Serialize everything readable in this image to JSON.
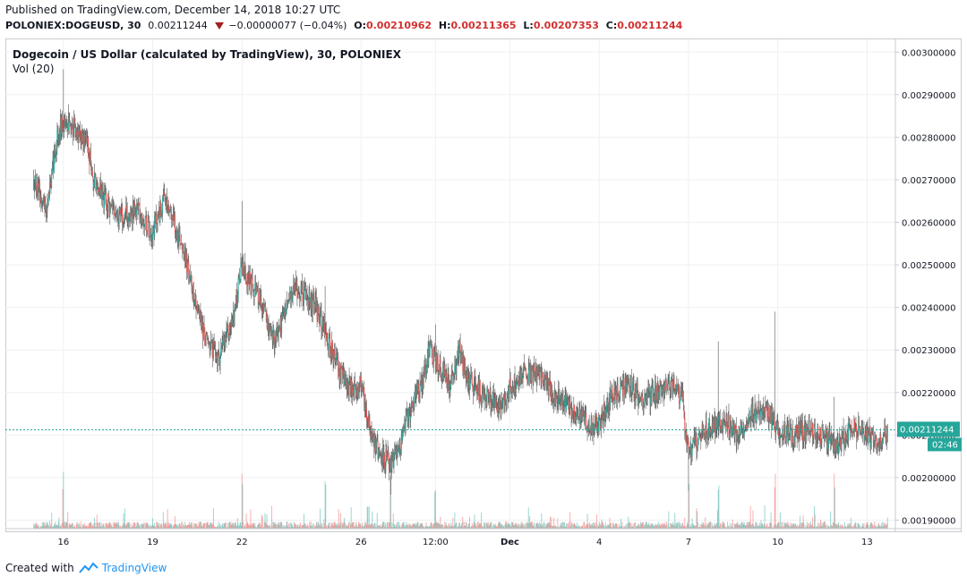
{
  "header": {
    "published": "Published on TradingView.com, December 14, 2018 10:27 UTC",
    "symbol": "POLONIEX:DOGEUSD, 30",
    "last": "0.00211244",
    "change": "−0.00000077 (−0.04%)",
    "open_label": "O:",
    "open": "0.00210962",
    "high_label": "H:",
    "high": "0.00211365",
    "low_label": "L:",
    "low": "0.00207353",
    "close_label": "C:",
    "close": "0.00211244"
  },
  "chart_data": {
    "type": "candlestick",
    "title": "Dogecoin / US Dollar (calculated by TradingView), 30, POLONIEX",
    "volume_label": "Vol (20)",
    "interval": "30",
    "y_ticks": [
      "0.00190000",
      "0.00200000",
      "0.00210000",
      "0.00220000",
      "0.00230000",
      "0.00240000",
      "0.00250000",
      "0.00260000",
      "0.00270000",
      "0.00280000",
      "0.00290000",
      "0.00300000"
    ],
    "ylim": [
      0.00188,
      0.00303
    ],
    "x_ticks": [
      "16",
      "19",
      "22",
      "26",
      "12:00",
      "Dec",
      "4",
      "7",
      "10",
      "13"
    ],
    "x_tick_days": [
      1,
      4,
      7,
      11,
      13.5,
      16,
      19,
      22,
      25,
      28
    ],
    "xlim": [
      -0.95,
      28.95
    ],
    "last_price_label": "0.00211244",
    "countdown": "02:46",
    "grid": true,
    "colors": {
      "up": "#26a69a",
      "down": "#ef5350",
      "wick": "#555555",
      "last_price": "#26a69a"
    },
    "price_path": [
      [
        0.0,
        0.0027
      ],
      [
        0.4,
        0.00262
      ],
      [
        0.8,
        0.0028
      ],
      [
        1.0,
        0.00284
      ],
      [
        1.4,
        0.00282
      ],
      [
        1.8,
        0.00279
      ],
      [
        2.0,
        0.0027
      ],
      [
        2.5,
        0.00264
      ],
      [
        3.0,
        0.00261
      ],
      [
        3.5,
        0.00263
      ],
      [
        4.0,
        0.00258
      ],
      [
        4.2,
        0.00262
      ],
      [
        4.4,
        0.00265
      ],
      [
        4.7,
        0.0026
      ],
      [
        5.0,
        0.00255
      ],
      [
        5.3,
        0.00245
      ],
      [
        5.8,
        0.00232
      ],
      [
        6.2,
        0.00228
      ],
      [
        6.7,
        0.00237
      ],
      [
        7.0,
        0.0025
      ],
      [
        7.3,
        0.00245
      ],
      [
        7.7,
        0.0024
      ],
      [
        8.1,
        0.00232
      ],
      [
        8.4,
        0.00238
      ],
      [
        8.8,
        0.00245
      ],
      [
        9.1,
        0.00243
      ],
      [
        9.5,
        0.0024
      ],
      [
        10.0,
        0.0023
      ],
      [
        10.3,
        0.00225
      ],
      [
        10.7,
        0.0022
      ],
      [
        11.0,
        0.00222
      ],
      [
        11.3,
        0.00212
      ],
      [
        11.6,
        0.00206
      ],
      [
        12.0,
        0.00203
      ],
      [
        12.3,
        0.00208
      ],
      [
        12.6,
        0.00215
      ],
      [
        13.0,
        0.00222
      ],
      [
        13.3,
        0.0023
      ],
      [
        13.6,
        0.00226
      ],
      [
        14.0,
        0.00222
      ],
      [
        14.3,
        0.0023
      ],
      [
        14.6,
        0.00223
      ],
      [
        15.0,
        0.0022
      ],
      [
        15.4,
        0.00218
      ],
      [
        15.7,
        0.00216
      ],
      [
        16.0,
        0.00221
      ],
      [
        16.5,
        0.00225
      ],
      [
        17.0,
        0.00224
      ],
      [
        17.5,
        0.00219
      ],
      [
        18.0,
        0.00217
      ],
      [
        18.4,
        0.00214
      ],
      [
        18.8,
        0.00212
      ],
      [
        19.0,
        0.00213
      ],
      [
        19.5,
        0.0022
      ],
      [
        20.0,
        0.00222
      ],
      [
        20.5,
        0.00218
      ],
      [
        21.0,
        0.00221
      ],
      [
        21.5,
        0.00222
      ],
      [
        21.8,
        0.00218
      ],
      [
        22.0,
        0.00206
      ],
      [
        22.4,
        0.0021
      ],
      [
        22.8,
        0.00212
      ],
      [
        23.2,
        0.00214
      ],
      [
        23.6,
        0.0021
      ],
      [
        24.0,
        0.00214
      ],
      [
        24.5,
        0.00216
      ],
      [
        25.0,
        0.00212
      ],
      [
        25.5,
        0.0021
      ],
      [
        26.0,
        0.00211
      ],
      [
        26.5,
        0.0021
      ],
      [
        27.0,
        0.00207
      ],
      [
        27.5,
        0.00212
      ],
      [
        28.0,
        0.0021
      ],
      [
        28.4,
        0.00208
      ],
      [
        28.7,
        0.00211244
      ]
    ],
    "spikes": [
      [
        1.0,
        0.00296,
        "high"
      ],
      [
        7.0,
        0.00265,
        "high"
      ],
      [
        9.8,
        0.00245,
        "high"
      ],
      [
        12.0,
        0.00196,
        "low"
      ],
      [
        13.5,
        0.00236,
        "high"
      ],
      [
        22.0,
        0.00197,
        "low"
      ],
      [
        23.0,
        0.00232,
        "high"
      ],
      [
        24.9,
        0.00239,
        "high"
      ],
      [
        26.9,
        0.00219,
        "high"
      ]
    ]
  },
  "footer": {
    "created_with": "Created with",
    "brand": "TradingView"
  }
}
